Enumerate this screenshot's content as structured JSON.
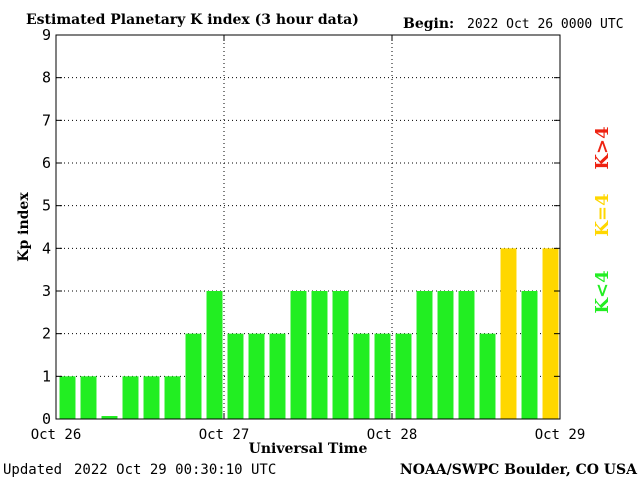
{
  "header": {
    "title": "Estimated Planetary K index (3 hour data)",
    "begin_label": "Begin:",
    "begin_value": "2022 Oct 26 0000 UTC"
  },
  "footer": {
    "updated_label": "Updated",
    "updated_value": "2022 Oct 29 00:30:10 UTC",
    "source": "NOAA/SWPC Boulder, CO USA"
  },
  "legend": {
    "high": "K>4",
    "equal": "K=4",
    "low": "K<4"
  },
  "colors": {
    "low": "#22ee22",
    "equal": "#ffd700",
    "high": "#ee2211",
    "axis": "#000000",
    "grid": "#000000"
  },
  "chart_data": {
    "type": "bar",
    "title": "Estimated Planetary K index (3 hour data)",
    "xlabel": "Universal Time",
    "ylabel": "Kp index",
    "ylim": [
      0,
      9
    ],
    "yticks": [
      0,
      1,
      2,
      3,
      4,
      5,
      6,
      7,
      8,
      9
    ],
    "xticks": [
      "Oct 26",
      "Oct 27",
      "Oct 28",
      "Oct 29"
    ],
    "grid": "dotted",
    "values": [
      1,
      1,
      0.07,
      1,
      1,
      1,
      2,
      3,
      2,
      2,
      2,
      3,
      3,
      3,
      2,
      2,
      2,
      3,
      3,
      3,
      2,
      4,
      3,
      4
    ]
  }
}
